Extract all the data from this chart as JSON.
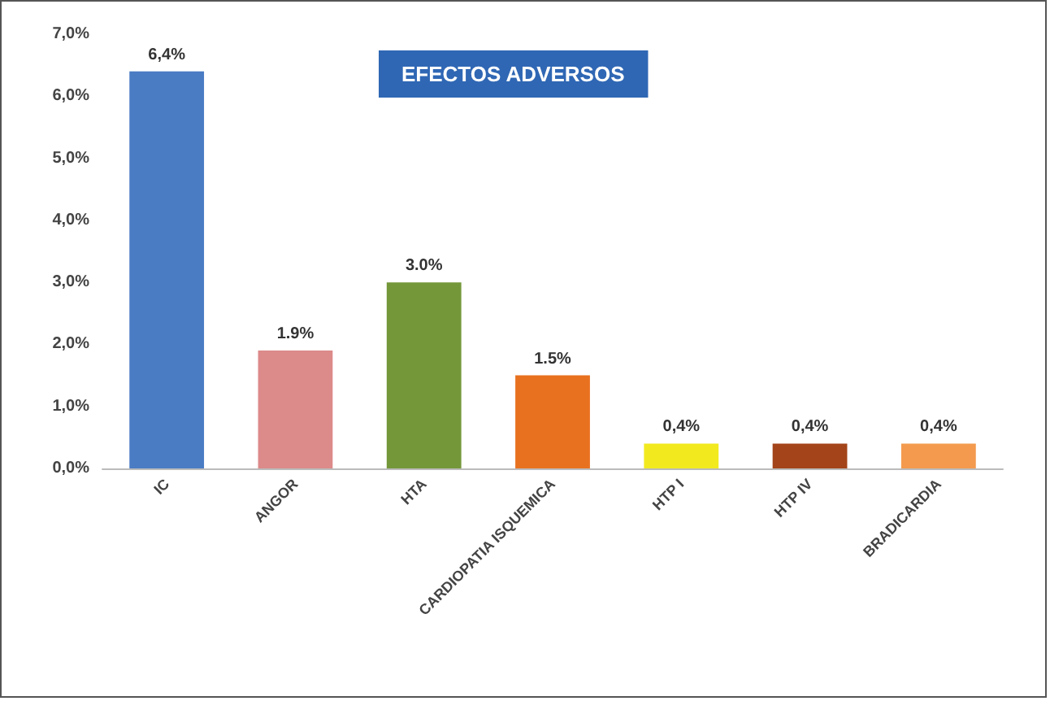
{
  "chart_data": {
    "type": "bar",
    "title": "EFECTOS ADVERSOS",
    "categories": [
      "IC",
      "ANGOR",
      "HTA",
      "CARDIOPATIA ISQUEMICA",
      "HTP I",
      "HTP IV",
      "BRADICARDIA"
    ],
    "values": [
      6.4,
      1.9,
      3.0,
      1.5,
      0.4,
      0.4,
      0.4
    ],
    "colors": [
      "#4a7cc4",
      "#dc8a8a",
      "#74973a",
      "#e8711f",
      "#f2ea1f",
      "#a3441a",
      "#f39a4e"
    ],
    "value_labels": [
      "6,4%",
      "1.9%",
      "3.0%",
      "1.5%",
      "0,4%",
      "0,4%",
      "0,4%"
    ],
    "ylim": [
      0,
      7
    ],
    "yticks": [
      {
        "value": 0,
        "label": "0,0%"
      },
      {
        "value": 1,
        "label": "1,0%"
      },
      {
        "value": 2,
        "label": "2,0%"
      },
      {
        "value": 3,
        "label": "3,0%"
      },
      {
        "value": 4,
        "label": "4,0%"
      },
      {
        "value": 5,
        "label": "5,0%"
      },
      {
        "value": 6,
        "label": "6,0%"
      },
      {
        "value": 7,
        "label": "7,0%"
      }
    ],
    "grid": false
  }
}
